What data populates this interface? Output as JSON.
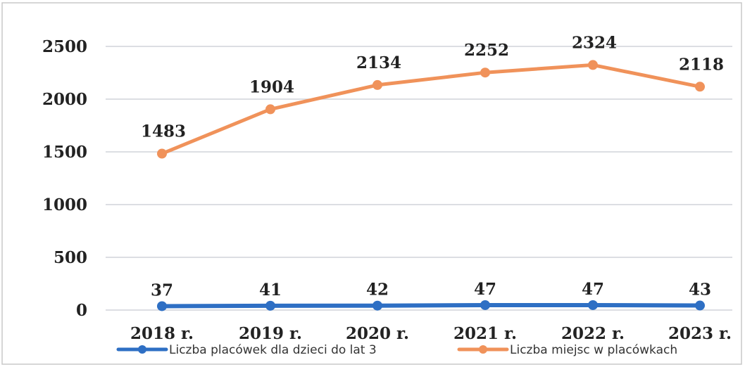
{
  "chart_data": {
    "type": "line",
    "categories": [
      "2018 r.",
      "2019 r.",
      "2020 r.",
      "2021 r.",
      "2022 r.",
      "2023 r."
    ],
    "series": [
      {
        "name": "Liczba placówek dla dzieci do lat 3",
        "values": [
          37,
          41,
          42,
          47,
          47,
          43
        ],
        "color": "#2e6fc4"
      },
      {
        "name": "Liczba miejsc w placówkach",
        "values": [
          1483,
          1904,
          2134,
          2252,
          2324,
          2118
        ],
        "color": "#f0925a"
      }
    ],
    "ylim": [
      0,
      2500
    ],
    "yticks": [
      "0",
      "500",
      "1000",
      "1500",
      "2000",
      "2500"
    ],
    "grid": true,
    "data_labels": true,
    "legend_position": "bottom"
  }
}
